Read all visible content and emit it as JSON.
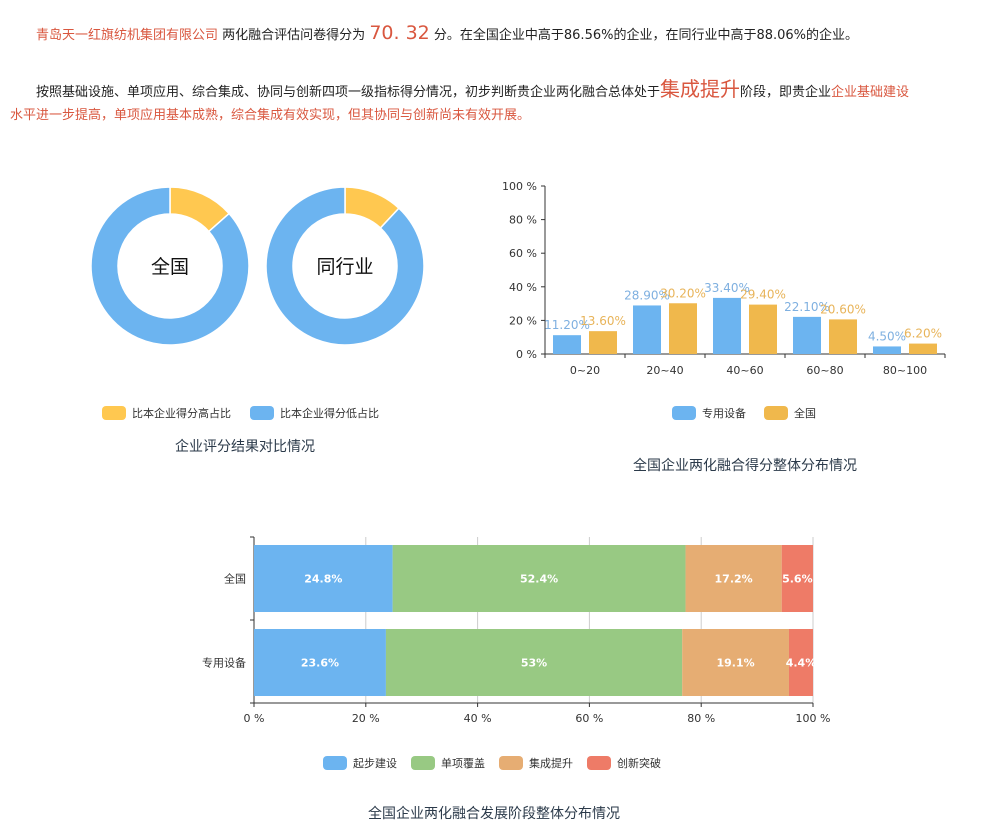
{
  "summary": {
    "company": "青岛天一红旗纺机集团有限公司",
    "text1": "两化融合评估问卷得分为",
    "score": "70. 32",
    "text2": "分。在全国企业中高于86.56%的企业，在同行业中高于88.06%的企业。",
    "p2_text1": "按照基础设施、单项应用、综合集成、协同与创新四项一级指标得分情况，初步判断贵企业两化融合总体处于",
    "stage": "集成提升",
    "p2_text2": "阶段，即贵企业",
    "p2_red1": "企业基础建设",
    "p2_red2": "水平进一步提高，单项应用基本成熟，综合集成有效实现，但其协同与创新尚未有效开展。"
  },
  "colors": {
    "blue": "#6cb4f0",
    "yellow": "#ffc850",
    "bar_yellow": "#f0b84c",
    "green": "#98c983",
    "orange": "#e6ad73",
    "red": "#ee7b67",
    "accent_text": "#d9573f"
  },
  "chart_data": [
    {
      "type": "pie",
      "variant": "donut",
      "caption": "企业评分结果对比情况",
      "legend": [
        "比本企业得分高占比",
        "比本企业得分低占比"
      ],
      "legend_placement": "bottom",
      "donuts": [
        {
          "label": "全国",
          "values": [
            13.44,
            86.56
          ]
        },
        {
          "label": "同行业",
          "values": [
            11.94,
            88.06
          ]
        }
      ]
    },
    {
      "type": "bar",
      "caption": "全国企业两化融合得分整体分布情况",
      "categories": [
        "0~20",
        "20~40",
        "40~60",
        "60~80",
        "80~100"
      ],
      "series": [
        {
          "name": "专用设备",
          "values": [
            11.2,
            28.9,
            33.4,
            22.1,
            4.5
          ],
          "labels": [
            "11.20%",
            "28.90%",
            "33.40%",
            "22.10%",
            "4.50%"
          ]
        },
        {
          "name": "全国",
          "values": [
            13.6,
            30.2,
            29.4,
            20.6,
            6.2
          ],
          "labels": [
            "13.60%",
            "30.20%",
            "29.40%",
            "20.60%",
            "6.20%"
          ]
        }
      ],
      "yticks": [
        "0 %",
        "20 %",
        "40 %",
        "60 %",
        "80 %",
        "100 %"
      ],
      "ylim": [
        0,
        100
      ],
      "grid": false,
      "legend_placement": "bottom"
    },
    {
      "type": "bar",
      "orientation": "horizontal-stacked",
      "caption": "全国企业两化融合发展阶段整体分布情况",
      "categories": [
        "全国",
        "专用设备"
      ],
      "series": [
        {
          "name": "起步建设",
          "values": [
            24.8,
            23.6
          ],
          "labels": [
            "24.8%",
            "23.6%"
          ]
        },
        {
          "name": "单项覆盖",
          "values": [
            52.4,
            53
          ],
          "labels": [
            "52.4%",
            "53%"
          ]
        },
        {
          "name": "集成提升",
          "values": [
            17.2,
            19.1
          ],
          "labels": [
            "17.2%",
            "19.1%"
          ]
        },
        {
          "name": "创新突破",
          "values": [
            5.6,
            4.4
          ],
          "labels": [
            "5.6%",
            "4.4%"
          ]
        }
      ],
      "xticks": [
        "0 %",
        "20 %",
        "40 %",
        "60 %",
        "80 %",
        "100 %"
      ],
      "xlim": [
        0,
        100
      ],
      "grid": true,
      "legend_placement": "bottom"
    }
  ]
}
